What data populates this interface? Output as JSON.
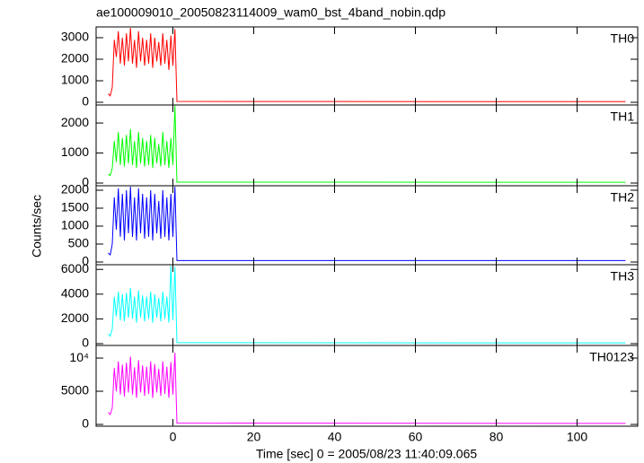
{
  "title": "ae100009010_20050823114009_wam0_bst_4band_nobin.qdp",
  "xlabel": "Time [sec] 0 = 2005/08/23 11:40:09.065",
  "ylabel": "Counts/sec",
  "chart_data": [
    {
      "type": "line",
      "xlim": [
        -19,
        115
      ],
      "xticks": [
        0,
        20,
        40,
        60,
        80,
        100
      ],
      "ylim": [
        -125,
        3500
      ],
      "yticks": [
        0,
        1000,
        2000,
        3000
      ],
      "x": [
        -16,
        -15.5,
        -15,
        -14.5,
        -14,
        -13.5,
        -13,
        -12.5,
        -12,
        -11.5,
        -11,
        -10.5,
        -10,
        -9.5,
        -9,
        -8.5,
        -8,
        -7.5,
        -7,
        -6.5,
        -6,
        -5.5,
        -5,
        -4.5,
        -4,
        -3.5,
        -3,
        -2.5,
        -2,
        -1.5,
        -1,
        -0.5,
        0,
        0.5,
        1,
        112
      ],
      "series": [
        {
          "name": "TH0",
          "color": "#ff0000",
          "values": [
            400,
            300,
            700,
            2900,
            2100,
            3300,
            1800,
            3000,
            1700,
            3200,
            1900,
            3450,
            1800,
            2900,
            1600,
            3300,
            1900,
            3000,
            1700,
            2900,
            1800,
            3200,
            1600,
            3000,
            1900,
            2800,
            1700,
            3200,
            1800,
            2900,
            1500,
            3100,
            1700,
            3400,
            40,
            30
          ]
        }
      ]
    },
    {
      "type": "line",
      "xlim": [
        -19,
        115
      ],
      "xticks": [
        0,
        20,
        40,
        60,
        80,
        100
      ],
      "ylim": [
        -90,
        2600
      ],
      "yticks": [
        0,
        1000,
        2000
      ],
      "x": [
        -16,
        -15.5,
        -15,
        -14.5,
        -14,
        -13.5,
        -13,
        -12.5,
        -12,
        -11.5,
        -11,
        -10.5,
        -10,
        -9.5,
        -9,
        -8.5,
        -8,
        -7.5,
        -7,
        -6.5,
        -6,
        -5.5,
        -5,
        -4.5,
        -4,
        -3.5,
        -3,
        -2.5,
        -2,
        -1.5,
        -1,
        -0.5,
        0,
        0.5,
        1,
        112
      ],
      "series": [
        {
          "name": "TH1",
          "color": "#00ff00",
          "values": [
            300,
            250,
            500,
            1400,
            700,
            1700,
            600,
            1500,
            550,
            1600,
            650,
            1800,
            600,
            1400,
            500,
            1700,
            650,
            1500,
            550,
            1400,
            600,
            1600,
            500,
            1500,
            650,
            1300,
            550,
            1700,
            600,
            1400,
            500,
            1500,
            600,
            2580,
            30,
            25
          ]
        }
      ]
    },
    {
      "type": "line",
      "xlim": [
        -19,
        115
      ],
      "xticks": [
        0,
        20,
        40,
        60,
        80,
        100
      ],
      "ylim": [
        -75,
        2125
      ],
      "yticks": [
        0,
        500,
        1000,
        1500,
        2000
      ],
      "x": [
        -16,
        -15.5,
        -15,
        -14.5,
        -14,
        -13.5,
        -13,
        -12.5,
        -12,
        -11.5,
        -11,
        -10.5,
        -10,
        -9.5,
        -9,
        -8.5,
        -8,
        -7.5,
        -7,
        -6.5,
        -6,
        -5.5,
        -5,
        -4.5,
        -4,
        -3.5,
        -3,
        -2.5,
        -2,
        -1.5,
        -1,
        -0.5,
        0,
        0.5,
        1,
        112
      ],
      "series": [
        {
          "name": "TH2",
          "color": "#0000ff",
          "values": [
            250,
            200,
            500,
            1800,
            900,
            2050,
            700,
            1900,
            600,
            2000,
            800,
            2100,
            700,
            1800,
            600,
            2050,
            800,
            1900,
            650,
            1800,
            700,
            2000,
            600,
            1900,
            800,
            1700,
            650,
            2000,
            700,
            1800,
            600,
            1900,
            700,
            2100,
            40,
            40
          ]
        }
      ]
    },
    {
      "type": "line",
      "xlim": [
        -19,
        115
      ],
      "xticks": [
        0,
        20,
        40,
        60,
        80,
        100
      ],
      "ylim": [
        -145,
        6380
      ],
      "yticks": [
        0,
        2000,
        4000,
        6000
      ],
      "x": [
        -16,
        -15.5,
        -15,
        -14.5,
        -14,
        -13.5,
        -13,
        -12.5,
        -12,
        -11.5,
        -11,
        -10.5,
        -10,
        -9.5,
        -9,
        -8.5,
        -8,
        -7.5,
        -7,
        -6.5,
        -6,
        -5.5,
        -5,
        -4.5,
        -4,
        -3.5,
        -3,
        -2.5,
        -2,
        -1.5,
        -1,
        -0.5,
        0,
        0.5,
        1,
        112
      ],
      "series": [
        {
          "name": "TH3",
          "color": "#00ffff",
          "values": [
            800,
            600,
            1200,
            3800,
            2200,
            4200,
            1900,
            4000,
            1800,
            4100,
            2100,
            4500,
            2000,
            3800,
            1700,
            4300,
            2100,
            3900,
            1800,
            3800,
            2000,
            4200,
            1700,
            4000,
            2100,
            3700,
            1800,
            4200,
            2000,
            3800,
            1700,
            6300,
            1900,
            6200,
            80,
            60
          ]
        }
      ]
    },
    {
      "type": "line",
      "xlim": [
        -19,
        115
      ],
      "xticks": [
        0,
        20,
        40,
        60,
        80,
        100
      ],
      "ylim": [
        -270,
        11900
      ],
      "yticks": [
        0,
        5000,
        {
          "value": 10000,
          "label": "10⁴"
        }
      ],
      "x": [
        -16,
        -15.5,
        -15,
        -14.5,
        -14,
        -13.5,
        -13,
        -12.5,
        -12,
        -11.5,
        -11,
        -10.5,
        -10,
        -9.5,
        -9,
        -8.5,
        -8,
        -7.5,
        -7,
        -6.5,
        -6,
        -5.5,
        -5,
        -4.5,
        -4,
        -3.5,
        -3,
        -2.5,
        -2,
        -1.5,
        -1,
        -0.5,
        0,
        0.5,
        1,
        112
      ],
      "series": [
        {
          "name": "TH0123",
          "color": "#ff00ff",
          "values": [
            1800,
            1500,
            2500,
            8500,
            5000,
            9500,
            4500,
            9000,
            4200,
            9300,
            4800,
            10200,
            4500,
            8600,
            4000,
            9700,
            4800,
            8900,
            4300,
            8700,
            4600,
            9500,
            4000,
            9100,
            4800,
            8400,
            4300,
            9500,
            4600,
            8700,
            4000,
            9400,
            4500,
            10800,
            200,
            150
          ]
        }
      ]
    }
  ]
}
